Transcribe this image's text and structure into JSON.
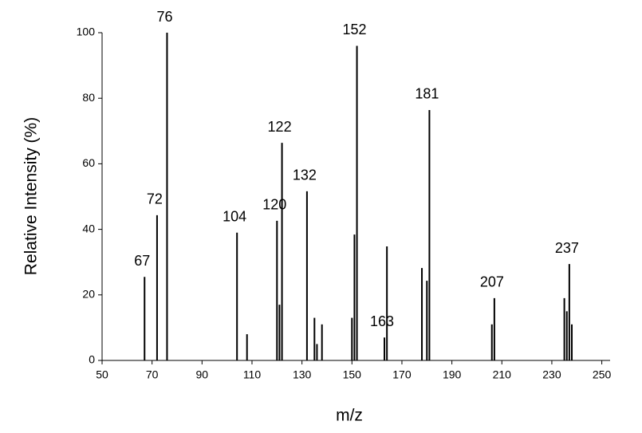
{
  "chart_data": {
    "type": "stick",
    "x_label": "m/z",
    "y_label": "Relative Intensity (%)",
    "x": [
      67,
      72,
      76,
      104,
      108,
      120,
      121,
      122,
      132,
      135,
      136,
      138,
      150,
      151,
      152,
      163,
      164,
      178,
      180,
      181,
      206,
      207,
      235,
      236,
      237,
      238
    ],
    "values": [
      25.5,
      44.3,
      100,
      39,
      8,
      42.6,
      17,
      66.4,
      51.6,
      13,
      5,
      11,
      13,
      38.4,
      96,
      7,
      34.8,
      28.2,
      24.3,
      76.4,
      11,
      19,
      19,
      15,
      29.4,
      11
    ],
    "annotations": [
      67,
      72,
      76,
      104,
      120,
      122,
      132,
      152,
      163,
      181,
      207,
      237
    ],
    "color": "#000000",
    "xlim": [
      50,
      253
    ],
    "ylim": [
      0,
      100
    ],
    "xticks": [
      50,
      70,
      90,
      110,
      130,
      150,
      170,
      190,
      210,
      230,
      250
    ],
    "yticks": [
      0,
      20,
      40,
      60,
      80,
      100
    ]
  }
}
